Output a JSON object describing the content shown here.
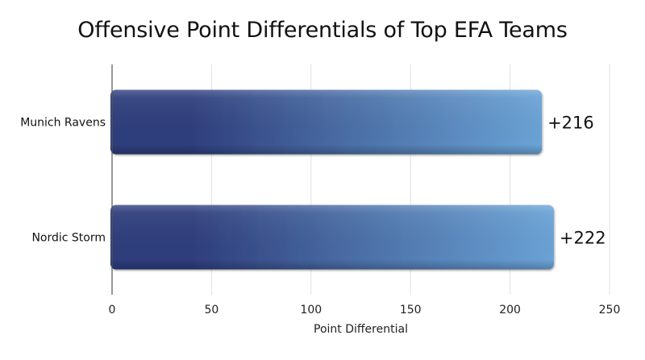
{
  "chart_data": {
    "type": "bar",
    "orientation": "horizontal",
    "title": "Offensive Point Differentials of Top EFA Teams",
    "xlabel": "Point Differential",
    "ylabel": "",
    "categories": [
      "Munich Ravens",
      "Nordic Storm"
    ],
    "values": [
      216,
      222
    ],
    "value_labels": [
      "+216",
      "+222"
    ],
    "xlim": [
      0,
      250
    ],
    "x_ticks": [
      0,
      50,
      100,
      150,
      200,
      250
    ],
    "x_tick_labels": [
      "0",
      "50",
      "100",
      "150",
      "200",
      "25⁠ 0"
    ],
    "grid": "vertical",
    "legend": "none",
    "colors": {
      "bar_dark": "#2e3d7c",
      "bar_mid": "#4a6ea6",
      "bar_light": "#6aa3d6",
      "grid": "#e2e2e2",
      "axis": "#555555"
    }
  }
}
